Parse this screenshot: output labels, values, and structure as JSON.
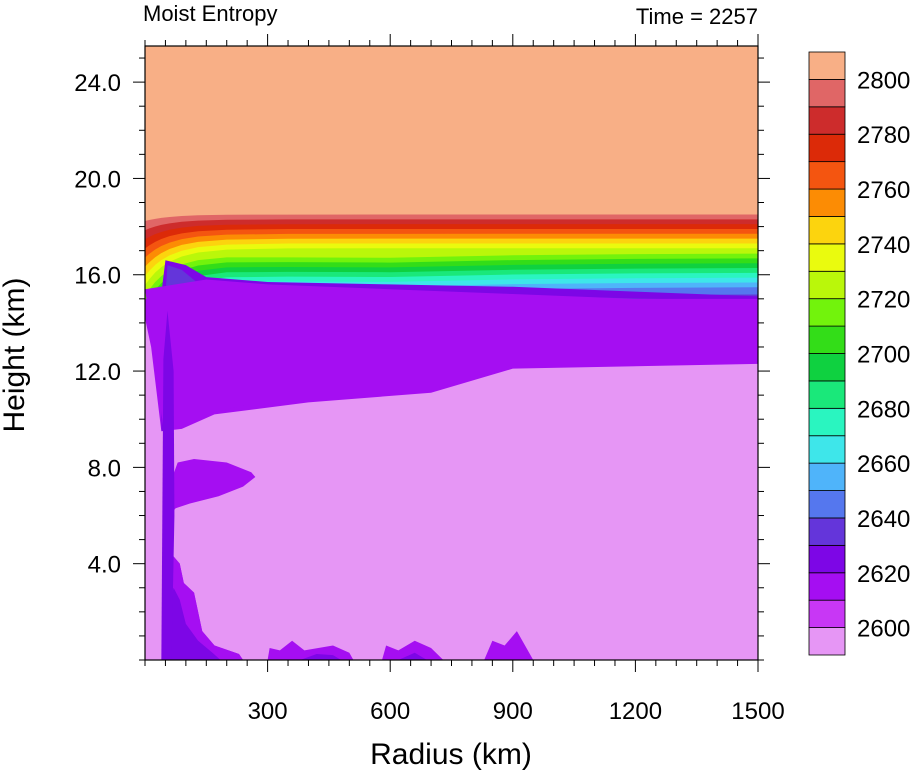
{
  "chart_data": {
    "type": "heatmap",
    "title_left": "Moist Entropy",
    "title_right": "Time = 2257",
    "xlabel": "Radius (km)",
    "ylabel": "Height (km)",
    "xlim": [
      0,
      1500
    ],
    "ylim": [
      0,
      25.5
    ],
    "x_ticks": [
      300,
      600,
      900,
      1200,
      1500
    ],
    "x_tick_labels": [
      "300",
      "600",
      "900",
      "1200",
      "1500"
    ],
    "y_ticks": [
      4,
      8,
      12,
      16,
      20,
      24
    ],
    "y_tick_labels": [
      "4.0",
      "8.0",
      "12.0",
      "16.0",
      "20.0",
      "24.0"
    ],
    "colorbar": {
      "levels": [
        2600,
        2610,
        2620,
        2630,
        2640,
        2650,
        2660,
        2670,
        2680,
        2690,
        2700,
        2710,
        2720,
        2730,
        2740,
        2750,
        2760,
        2770,
        2780,
        2790,
        2800
      ],
      "label_values": [
        "2600",
        "2620",
        "2640",
        "2660",
        "2680",
        "2700",
        "2720",
        "2740",
        "2760",
        "2780",
        "2800"
      ],
      "colors": [
        "#e696f5",
        "#c837f5",
        "#a50ef2",
        "#7d06e6",
        "#6435da",
        "#5577ee",
        "#4fb4fa",
        "#3ee6ea",
        "#2af5c0",
        "#1ae87a",
        "#0fd140",
        "#33dd18",
        "#72f30c",
        "#baf70a",
        "#eafb0e",
        "#fcd40e",
        "#fc8c04",
        "#f45510",
        "#dc2a08",
        "#cd2c2c",
        "#e06666",
        "#f8af86"
      ]
    },
    "bands": [
      {
        "level": 2800,
        "height_km": 18.8
      },
      {
        "level": 2790,
        "height_km": 18.5
      },
      {
        "level": 2780,
        "height_km": 18.3
      },
      {
        "level": 2770,
        "height_km": 18.1
      },
      {
        "level": 2760,
        "height_km": 17.9
      },
      {
        "level": 2750,
        "height_km": 17.7
      },
      {
        "level": 2740,
        "height_km": 17.5
      },
      {
        "level": 2730,
        "height_km": 17.3
      },
      {
        "level": 2720,
        "height_km": 17.1
      },
      {
        "level": 2710,
        "height_km": 16.9
      },
      {
        "level": 2700,
        "height_km": 16.7
      },
      {
        "level": 2690,
        "height_km": 16.5
      },
      {
        "level": 2680,
        "height_km": 16.3
      },
      {
        "level": 2670,
        "height_km": 16.1
      },
      {
        "level": 2660,
        "height_km": 15.9
      },
      {
        "level": 2650,
        "height_km": 15.7
      },
      {
        "level": 2640,
        "height_km": 15.5
      },
      {
        "level": 2630,
        "height_km": 15.2
      }
    ],
    "regions": [
      {
        "level": 2620,
        "outline": [
          [
            50,
            16.6
          ],
          [
            100,
            16.4
          ],
          [
            150,
            15.9
          ],
          [
            300,
            15.7
          ],
          [
            600,
            15.6
          ],
          [
            900,
            15.5
          ],
          [
            1200,
            15.3
          ],
          [
            1500,
            15.1
          ],
          [
            1500,
            14.6
          ],
          [
            1200,
            14.8
          ],
          [
            900,
            15.0
          ],
          [
            600,
            15.1
          ],
          [
            400,
            14.8
          ],
          [
            220,
            14.3
          ],
          [
            160,
            14.8
          ],
          [
            120,
            14.6
          ],
          [
            90,
            10.0
          ],
          [
            75,
            5.0
          ],
          [
            65,
            0.5
          ],
          [
            40,
            0.5
          ],
          [
            40,
            12.0
          ],
          [
            42,
            15.5
          ]
        ]
      },
      {
        "level": 2630,
        "outline": [
          [
            55,
            16.4
          ],
          [
            90,
            16.2
          ],
          [
            140,
            15.5
          ],
          [
            250,
            15.3
          ],
          [
            600,
            15.2
          ],
          [
            1000,
            15.1
          ],
          [
            1500,
            14.9
          ],
          [
            1500,
            14.7
          ],
          [
            1000,
            14.9
          ],
          [
            600,
            15.0
          ],
          [
            300,
            14.9
          ],
          [
            150,
            14.8
          ],
          [
            100,
            14.0
          ],
          [
            80,
            9.0
          ],
          [
            70,
            3.0
          ],
          [
            62,
            0.3
          ],
          [
            45,
            0.3
          ],
          [
            45,
            10.0
          ],
          [
            47,
            14.5
          ]
        ]
      },
      {
        "level": 2610,
        "outline": [
          [
            0,
            15.4
          ],
          [
            20,
            13.0
          ],
          [
            45,
            9.6
          ],
          [
            60,
            9.4
          ],
          [
            90,
            9.6
          ],
          [
            120,
            9.9
          ],
          [
            170,
            10.3
          ],
          [
            250,
            10.6
          ],
          [
            400,
            10.8
          ],
          [
            560,
            10.9
          ],
          [
            700,
            11.2
          ],
          [
            800,
            11.8
          ],
          [
            900,
            12.1
          ],
          [
            1200,
            12.2
          ],
          [
            1500,
            12.3
          ],
          [
            1500,
            15.0
          ],
          [
            1200,
            15.0
          ],
          [
            900,
            15.2
          ],
          [
            600,
            15.4
          ],
          [
            300,
            15.6
          ],
          [
            150,
            15.8
          ]
        ]
      },
      {
        "level": 2610,
        "outline": [
          [
            50,
            0
          ],
          [
            55,
            3.0
          ],
          [
            70,
            4.3
          ],
          [
            85,
            4.0
          ],
          [
            95,
            3.2
          ],
          [
            120,
            2.8
          ],
          [
            140,
            1.2
          ],
          [
            170,
            0.6
          ],
          [
            230,
            0.25
          ],
          [
            240,
            0
          ]
        ]
      },
      {
        "level": 2620,
        "outline": [
          [
            52,
            0
          ],
          [
            58,
            2.2
          ],
          [
            70,
            3.0
          ],
          [
            85,
            2.5
          ],
          [
            100,
            1.5
          ],
          [
            130,
            0.8
          ],
          [
            165,
            0.3
          ],
          [
            185,
            0
          ]
        ]
      },
      {
        "level": 2610,
        "outline": [
          [
            60,
            6.0
          ],
          [
            65,
            7.5
          ],
          [
            80,
            8.2
          ],
          [
            120,
            8.35
          ],
          [
            200,
            8.2
          ],
          [
            260,
            7.8
          ],
          [
            270,
            7.6
          ],
          [
            240,
            7.2
          ],
          [
            180,
            6.8
          ],
          [
            110,
            6.5
          ],
          [
            75,
            6.3
          ]
        ]
      },
      {
        "level": 2610,
        "outline": [
          [
            300,
            0
          ],
          [
            305,
            0.5
          ],
          [
            330,
            0.4
          ],
          [
            360,
            0.8
          ],
          [
            390,
            0.4
          ],
          [
            460,
            0.6
          ],
          [
            500,
            0.3
          ],
          [
            510,
            0
          ]
        ]
      },
      {
        "level": 2610,
        "outline": [
          [
            580,
            0
          ],
          [
            590,
            0.6
          ],
          [
            620,
            0.4
          ],
          [
            660,
            0.8
          ],
          [
            700,
            0.5
          ],
          [
            730,
            0
          ]
        ]
      },
      {
        "level": 2610,
        "outline": [
          [
            830,
            0
          ],
          [
            850,
            0.8
          ],
          [
            880,
            0.6
          ],
          [
            910,
            1.2
          ],
          [
            940,
            0.3
          ],
          [
            950,
            0
          ]
        ]
      },
      {
        "level": 2620,
        "outline": [
          [
            380,
            0
          ],
          [
            420,
            0.25
          ],
          [
            460,
            0.2
          ],
          [
            480,
            0
          ]
        ]
      },
      {
        "level": 2620,
        "outline": [
          [
            620,
            0
          ],
          [
            660,
            0.3
          ],
          [
            690,
            0
          ]
        ]
      }
    ]
  }
}
